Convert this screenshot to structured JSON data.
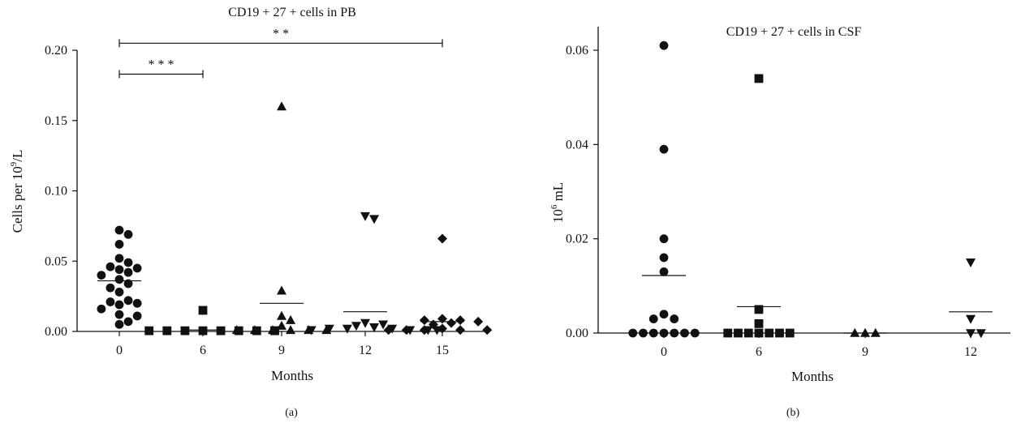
{
  "figure": {
    "panel_a_label": "(a)",
    "panel_b_label": "(b)"
  },
  "chart_data": [
    {
      "type": "scatter",
      "title": "CD19 + 27 + cells in PB",
      "xlabel": "Months",
      "ylabel": "Cells per 10",
      "ylabel_sup": "9",
      "ylabel_tail": "/L",
      "ylim": [
        0,
        0.2
      ],
      "yticks": [
        0.0,
        0.05,
        0.1,
        0.15,
        0.2
      ],
      "ytick_labels": [
        "0.00",
        "0.05",
        "0.10",
        "0.15",
        "0.20"
      ],
      "categories": [
        "0",
        "6",
        "9",
        "12",
        "15"
      ],
      "grid": false,
      "legend": "none",
      "series": [
        {
          "category": "0",
          "marker": "circle",
          "mean": 0.036,
          "values": [
            0.072,
            0.069,
            0.062,
            0.052,
            0.049,
            0.046,
            0.045,
            0.044,
            0.042,
            0.04,
            0.037,
            0.034,
            0.031,
            0.028,
            0.022,
            0.021,
            0.02,
            0.019,
            0.016,
            0.012,
            0.011,
            0.007,
            0.005
          ]
        },
        {
          "category": "6",
          "marker": "square",
          "mean": 0.001,
          "values": [
            0.015,
            0.0005,
            0.0005,
            0.0005,
            0.0005,
            0.0005,
            0.0005,
            0.0005,
            0.0005,
            0.0005
          ]
        },
        {
          "category": "9",
          "marker": "triangle-up",
          "mean": 0.02,
          "values": [
            0.16,
            0.029,
            0.011,
            0.008,
            0.004,
            0.001,
            0.001,
            0.001,
            0.001,
            0.001,
            0.001
          ]
        },
        {
          "category": "12",
          "marker": "triangle-down",
          "mean": 0.014,
          "values": [
            0.082,
            0.08,
            0.006,
            0.005,
            0.004,
            0.003,
            0.002,
            0.002,
            0.002,
            0.001,
            0.001,
            0.001,
            0.001
          ]
        },
        {
          "category": "15",
          "marker": "diamond",
          "mean": 0.007,
          "values": [
            0.066,
            0.009,
            0.008,
            0.008,
            0.007,
            0.006,
            0.005,
            0.002,
            0.001,
            0.001,
            0.001,
            0.001,
            0.001
          ]
        }
      ],
      "annotations": [
        {
          "text": "* * *",
          "from": "0",
          "to": "6",
          "y": 0.183
        },
        {
          "text": "* *",
          "from": "0",
          "to": "15",
          "y": 0.205
        }
      ]
    },
    {
      "type": "scatter",
      "title": "CD19 + 27 + cells in CSF",
      "xlabel": "Months",
      "ylabel": "10",
      "ylabel_sup": "6",
      "ylabel_tail": " mL",
      "ylim": [
        0,
        0.065
      ],
      "yticks": [
        0.0,
        0.02,
        0.04,
        0.06
      ],
      "ytick_labels": [
        "0.00",
        "0.02",
        "0.04",
        "0.06"
      ],
      "categories": [
        "0",
        "6",
        "9",
        "12"
      ],
      "grid": false,
      "legend": "none",
      "series": [
        {
          "category": "0",
          "marker": "circle",
          "mean": 0.0122,
          "values": [
            0.061,
            0.039,
            0.02,
            0.016,
            0.013,
            0.004,
            0.003,
            0.003,
            0,
            0,
            0,
            0,
            0,
            0,
            0
          ]
        },
        {
          "category": "6",
          "marker": "square",
          "mean": 0.0056,
          "values": [
            0.054,
            0.005,
            0.002,
            0,
            0,
            0,
            0,
            0,
            0,
            0
          ]
        },
        {
          "category": "9",
          "marker": "triangle-up",
          "mean": 0.0,
          "values": [
            0,
            0,
            0
          ]
        },
        {
          "category": "12",
          "marker": "triangle-down",
          "mean": 0.0045,
          "values": [
            0.015,
            0.003,
            0,
            0
          ]
        }
      ],
      "annotations": []
    }
  ]
}
